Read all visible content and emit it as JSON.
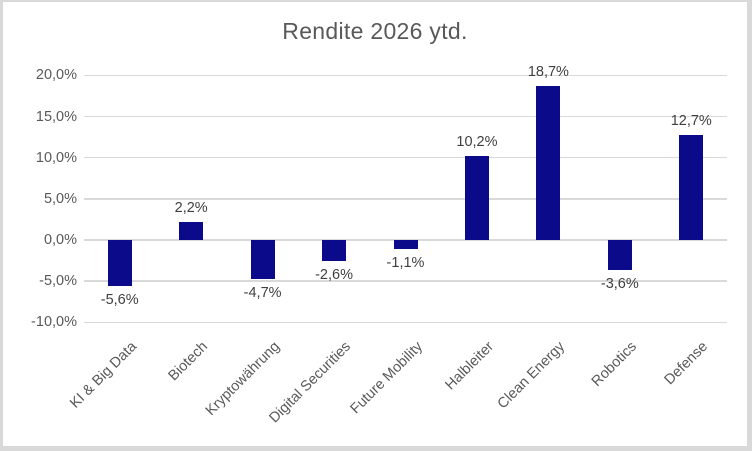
{
  "chart_data": {
    "type": "bar",
    "title": "Rendite 2026 ytd.",
    "categories": [
      "KI & Big Data",
      "Biotech",
      "Kryptowährung",
      "Digital Securities",
      "Future Mobility",
      "Halbleiter",
      "Clean Energy",
      "Robotics",
      "Defense"
    ],
    "values": [
      -5.6,
      2.2,
      -4.7,
      -2.6,
      -1.1,
      10.2,
      18.7,
      -3.6,
      12.7
    ],
    "value_labels": [
      "-5,6%",
      "2,2%",
      "-4,7%",
      "-2,6%",
      "-1,1%",
      "10,2%",
      "18,7%",
      "-3,6%",
      "12,7%"
    ],
    "y_ticks": {
      "values": [
        20,
        15,
        10,
        5,
        0,
        -5,
        -10
      ],
      "labels": [
        "20,0%",
        "15,0%",
        "10,0%",
        "5,0%",
        "0,0%",
        "-5,0%",
        "-10,0%"
      ]
    },
    "ylim": [
      -10,
      20
    ],
    "xlabel": "",
    "ylabel": "",
    "grid": "horizontal-only",
    "legend": "none",
    "number_format": "german-comma-percent"
  },
  "colors": {
    "bar": "#0a0a8a",
    "gridline": "#d9d9d9",
    "axis_text": "#595959",
    "title_text": "#595959",
    "data_label_text": "#404040",
    "frame_border": "#d9d9d9",
    "background": "#ffffff"
  }
}
